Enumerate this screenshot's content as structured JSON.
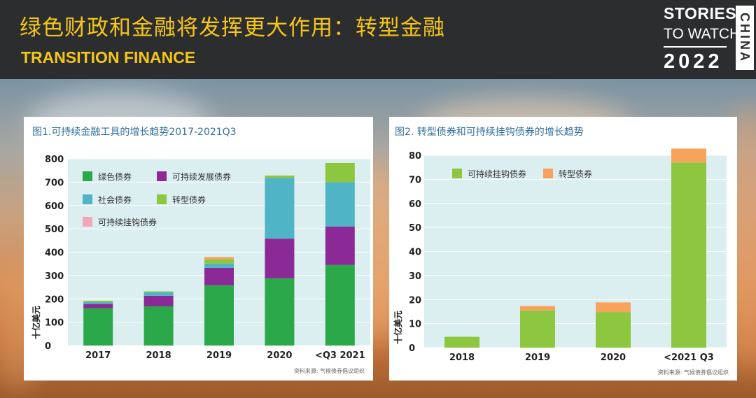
{
  "header": {
    "title_cn": "绿色财政和金融将发挥更大作用：转型金融",
    "title_en": "TRANSITION FINANCE",
    "brand_line1": "STORIES",
    "brand_line2": "TO WATCH",
    "brand_year": "2022",
    "brand_country": "CHINA",
    "accent": "#f5c518"
  },
  "chart_data": [
    {
      "type": "bar",
      "stacked": true,
      "title": "图1.可持续金融工具的增长趋势2017-2021Q3",
      "ylabel": "十亿美元",
      "xlabel": "",
      "ylim": [
        0,
        800
      ],
      "yticks": [
        0,
        100,
        200,
        300,
        400,
        500,
        600,
        700,
        800
      ],
      "categories": [
        "2017",
        "2018",
        "2019",
        "2020",
        "<Q3 2021"
      ],
      "series": [
        {
          "name": "绿色债券",
          "color": "#2aa84a",
          "values": [
            160,
            168,
            258,
            288,
            345
          ]
        },
        {
          "name": "可持续发展债券",
          "color": "#8b2a96",
          "values": [
            18,
            45,
            75,
            170,
            165
          ]
        },
        {
          "name": "社会债券",
          "color": "#4fb4c6",
          "values": [
            8,
            15,
            18,
            260,
            190
          ]
        },
        {
          "name": "转型债券",
          "color": "#8dc63f",
          "values": [
            6,
            4,
            18,
            10,
            82
          ]
        },
        {
          "name": "可持续挂钩债券",
          "color": "#f4a7b9",
          "values": [
            0,
            0,
            0,
            0,
            0
          ]
        },
        {
          "name": "",
          "color": "#f7a35c",
          "values": [
            0,
            0,
            10,
            0,
            0
          ]
        }
      ],
      "legend_position": "top-left",
      "grid": true,
      "source": "资料来源: 气候债券倡议组织"
    },
    {
      "type": "bar",
      "stacked": true,
      "title": "图2. 转型债券和可持续挂钩债券的增长趋势",
      "ylabel": "十亿美元",
      "xlabel": "",
      "ylim": [
        0,
        80
      ],
      "yticks": [
        0,
        10,
        20,
        30,
        40,
        50,
        60,
        70,
        80
      ],
      "categories": [
        "2018",
        "2019",
        "2020",
        "<2021 Q3"
      ],
      "series": [
        {
          "name": "可持续挂钩债券",
          "color": "#8dc63f",
          "values": [
            4.5,
            15.5,
            14.8,
            77
          ]
        },
        {
          "name": "转型债券",
          "color": "#f7a35c",
          "values": [
            0,
            1.8,
            4,
            5.8
          ]
        }
      ],
      "legend_position": "top-left",
      "grid": true,
      "source": "资料来源: 气候债券倡议组织"
    }
  ]
}
